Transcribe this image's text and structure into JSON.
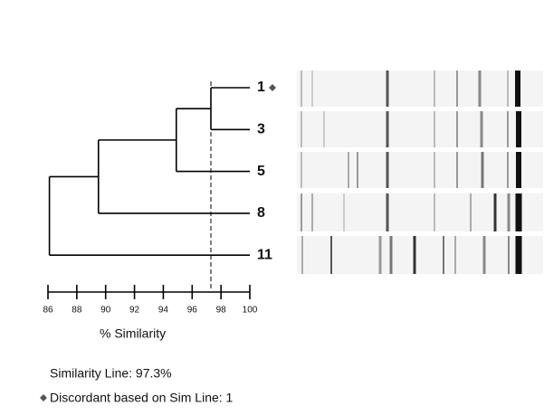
{
  "chart_data": {
    "type": "dendrogram",
    "x_label": "% Similarity",
    "xlim": [
      86,
      100
    ],
    "xticks": [
      86,
      88,
      90,
      92,
      94,
      96,
      98,
      100
    ],
    "similarity_line": 97.3,
    "similarity_line_label": "Similarity Line: 97.3%",
    "discordant_label": "Discordant based on Sim Line: 1",
    "tree": {
      "value": 86.1,
      "children": [
        {
          "value": 89.5,
          "children": [
            {
              "value": 94.9,
              "children": [
                {
                  "value": 97.3,
                  "children": [
                    {
                      "label": "1"
                    },
                    {
                      "label": "3"
                    }
                  ]
                },
                {
                  "label": "5"
                }
              ]
            },
            {
              "label": "8"
            }
          ]
        },
        {
          "label": "11"
        }
      ]
    }
  }
}
